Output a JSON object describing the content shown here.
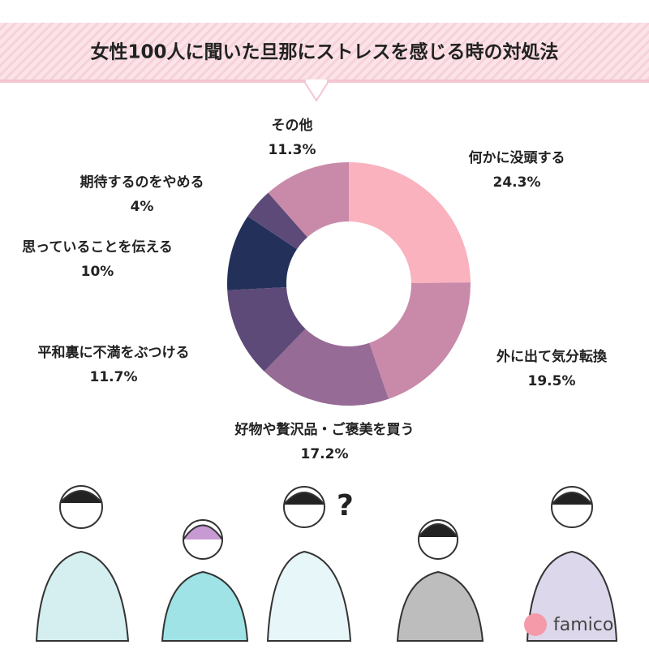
{
  "chart_data": {
    "type": "pie",
    "title": "女性100人に聞いた旦那にストレスを感じる時の対処法",
    "categories": [
      "何かに没頭する",
      "外に出て気分転換",
      "好物や贅沢品・ご褒美を買う",
      "平和裏に不満をぶつける",
      "思っていることを伝える",
      "期待するのをやめる",
      "その他"
    ],
    "values": [
      24.3,
      19.5,
      17.2,
      11.7,
      10,
      4,
      11.3
    ],
    "value_labels": [
      "24.3%",
      "19.5%",
      "17.2%",
      "11.7%",
      "10%",
      "4%",
      "11.3%"
    ],
    "colors": [
      "#f9b2be",
      "#c98aa9",
      "#966b95",
      "#5d4a78",
      "#23315a",
      "#5d4a78",
      "#c98aa9"
    ]
  },
  "brand": "famico"
}
